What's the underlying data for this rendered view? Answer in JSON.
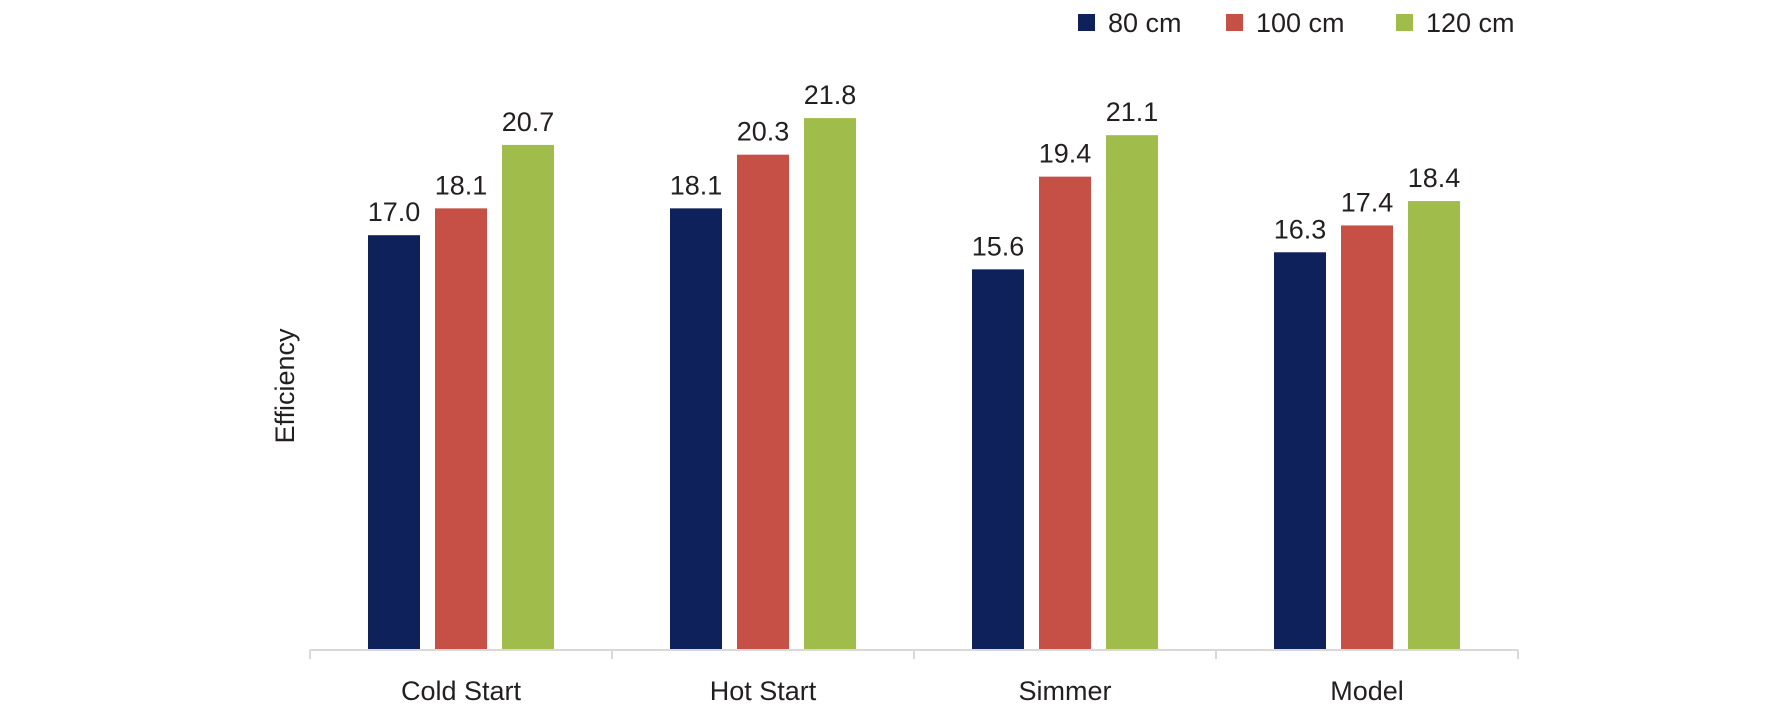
{
  "chart_data": {
    "type": "bar",
    "title": "",
    "xlabel": "",
    "ylabel": "Efficiency",
    "ylim": [
      0,
      26.6
    ],
    "grid": false,
    "legend_position": "top-right",
    "categories": [
      "Cold Start",
      "Hot Start",
      "Simmer",
      "Model"
    ],
    "series": [
      {
        "name": "80 cm",
        "color": "#0f215a",
        "values": [
          17.0,
          18.1,
          15.6,
          16.3
        ],
        "labels": [
          "17.0",
          "18.1",
          "15.6",
          "16.3"
        ]
      },
      {
        "name": "100 cm",
        "color": "#c64f46",
        "values": [
          18.1,
          20.3,
          19.4,
          17.4
        ],
        "labels": [
          "18.1",
          "20.3",
          "19.4",
          "17.4"
        ]
      },
      {
        "name": "120 cm",
        "color": "#a0bd4c",
        "values": [
          20.7,
          21.8,
          21.1,
          18.4
        ],
        "labels": [
          "20.7",
          "21.8",
          "21.1",
          "18.4"
        ]
      }
    ]
  }
}
